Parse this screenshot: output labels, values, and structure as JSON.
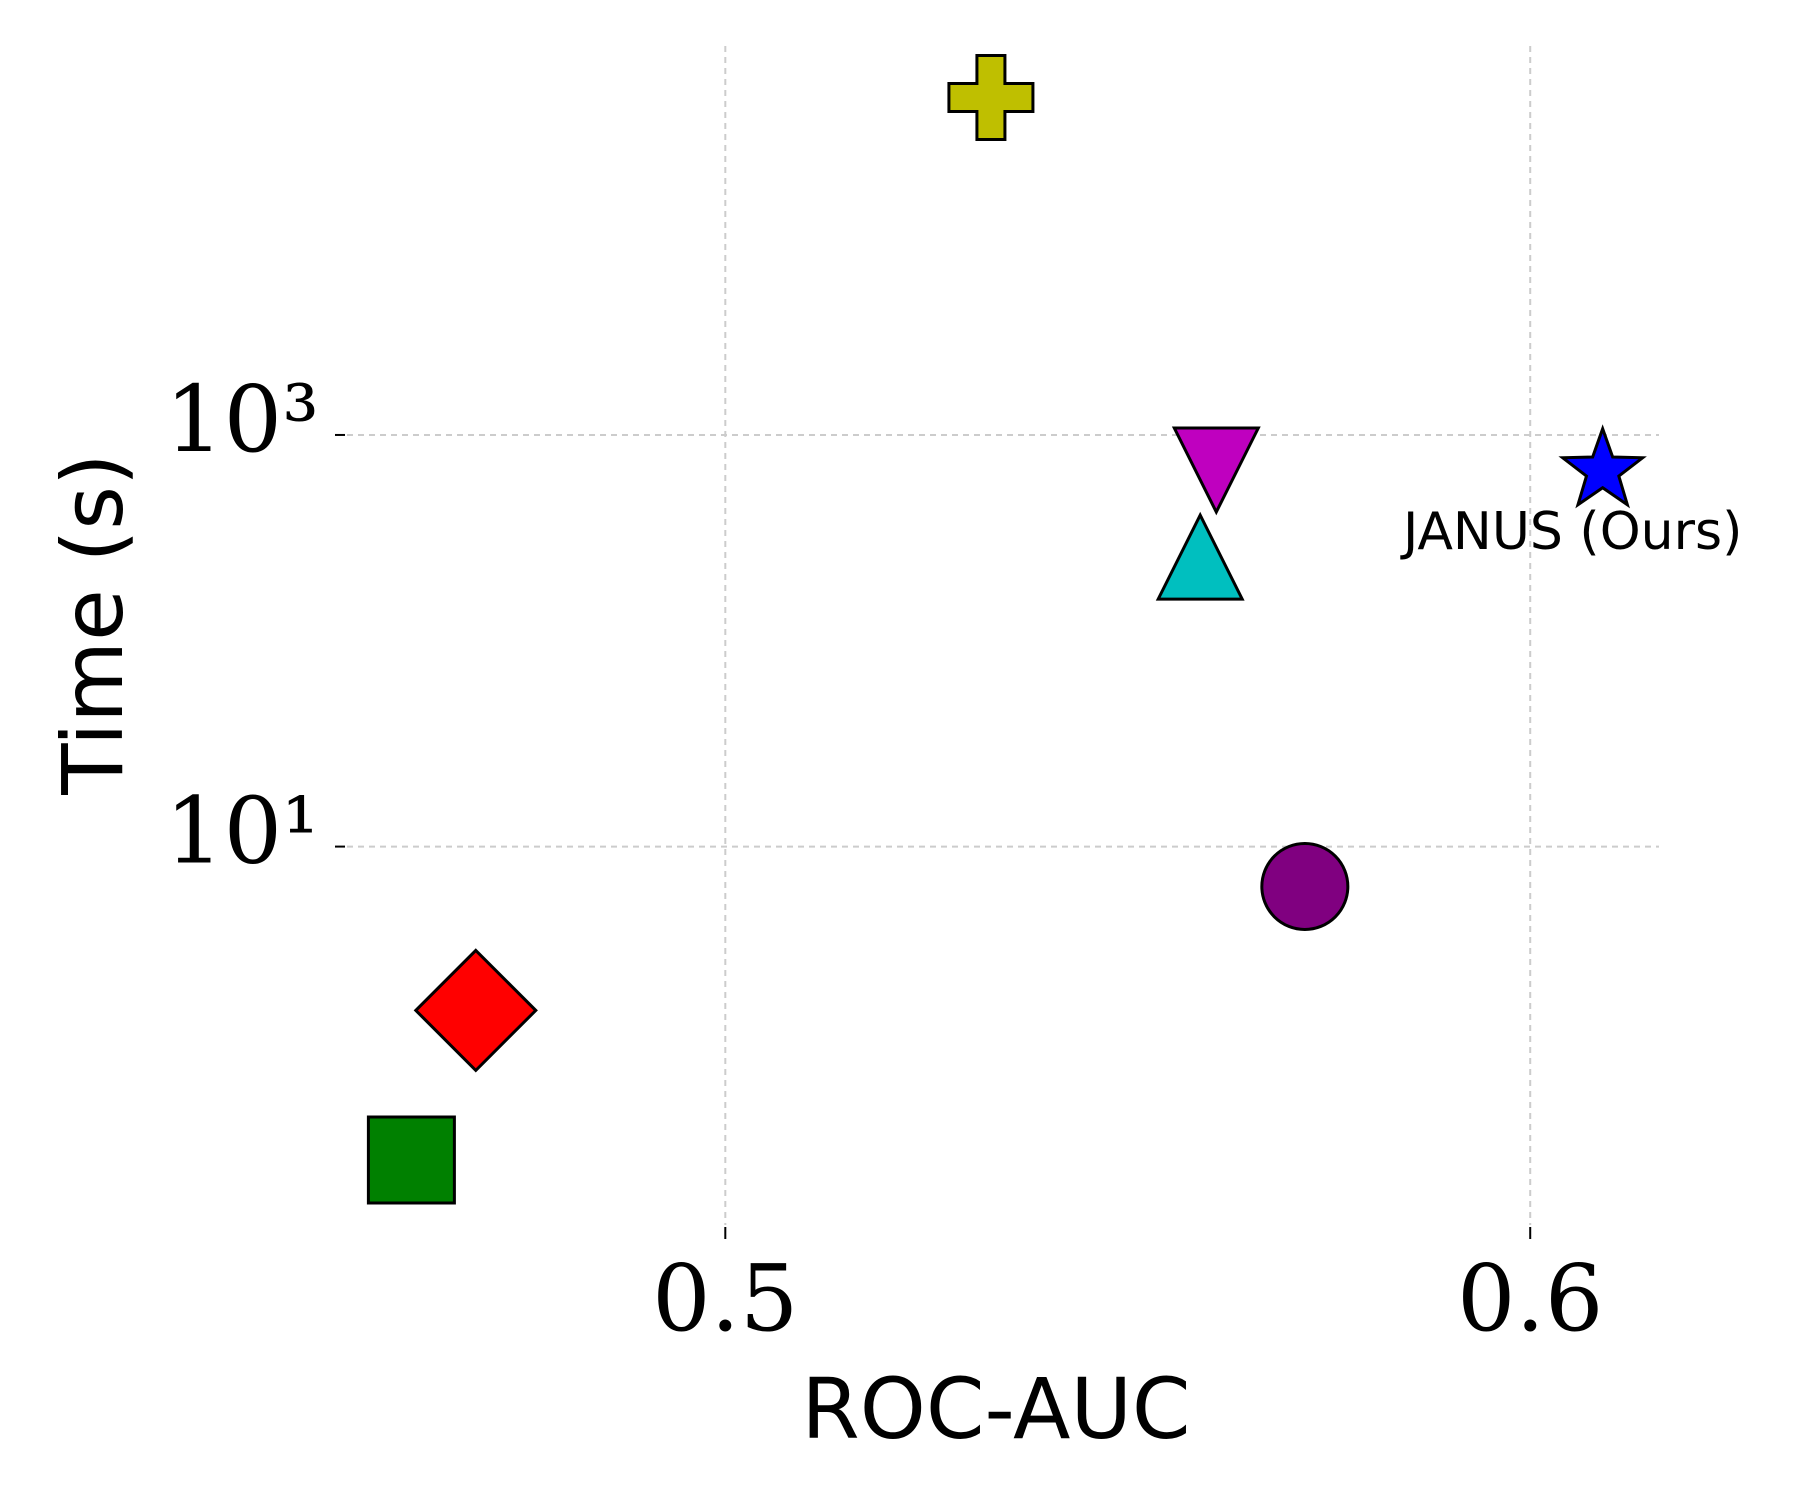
{
  "chart_data": {
    "type": "scatter",
    "xlabel": "ROC-AUC",
    "ylabel": "Time (s)",
    "xlim": [
      0.453,
      0.616
    ],
    "ylim": [
      0.145,
      77600
    ],
    "yscale": "log",
    "grid": true,
    "xticks": [
      0.5,
      0.6
    ],
    "yticks": [
      {
        "value": 10,
        "label": "10¹"
      },
      {
        "value": 1000,
        "label": "10³"
      }
    ],
    "series": [
      {
        "marker": "square",
        "color": "#008000",
        "x": [
          0.461
        ],
        "values": [
          0.3
        ]
      },
      {
        "marker": "diamond",
        "color": "#ff0000",
        "x": [
          0.469
        ],
        "values": [
          1.6
        ]
      },
      {
        "marker": "plus",
        "color": "#bfbf00",
        "x": [
          0.533
        ],
        "values": [
          43600
        ]
      },
      {
        "marker": "triangle-down",
        "color": "#bf00bf",
        "x": [
          0.561
        ],
        "values": [
          790
        ]
      },
      {
        "marker": "triangle-up",
        "color": "#00bfbf",
        "x": [
          0.559
        ],
        "values": [
          218
        ]
      },
      {
        "marker": "circle",
        "color": "#800080",
        "x": [
          0.572
        ],
        "values": [
          6.4
        ]
      },
      {
        "marker": "star",
        "color": "#0000ff",
        "x": [
          0.609
        ],
        "values": [
          670
        ],
        "label": "JANUS (Ours)"
      }
    ]
  }
}
